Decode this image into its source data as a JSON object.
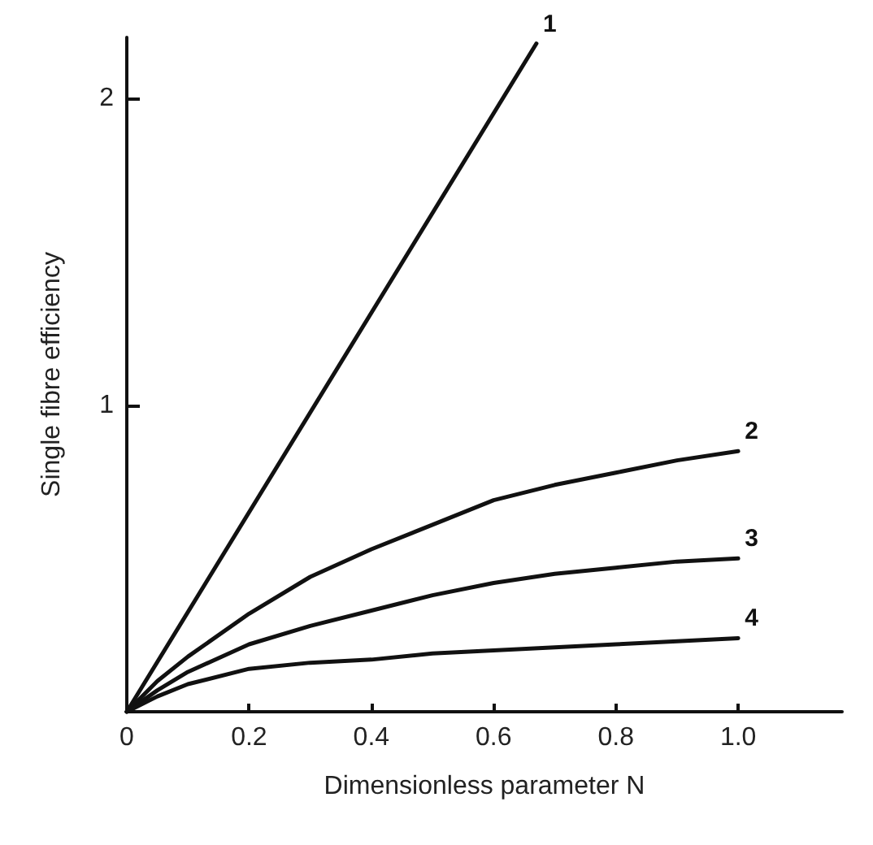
{
  "chart_data": {
    "type": "line",
    "xlabel": "Dimensionless parameter N",
    "ylabel": "Single fibre efficiency",
    "xlim": [
      0,
      1.17
    ],
    "ylim": [
      0,
      2.2
    ],
    "xticks": [
      0,
      0.2,
      0.4,
      0.6,
      0.8,
      {
        "value": 1.0,
        "label": "1.0"
      }
    ],
    "yticks": [
      {
        "value": 0,
        "label": null
      },
      1,
      2
    ],
    "grid": false,
    "legend": false,
    "marker": "none",
    "line_style": "solid",
    "series": [
      {
        "name": "1",
        "color": "#111111",
        "x": [
          0,
          0.67
        ],
        "values": [
          0,
          2.18
        ]
      },
      {
        "name": "2",
        "color": "#111111",
        "x": [
          0,
          0.05,
          0.1,
          0.2,
          0.3,
          0.4,
          0.5,
          0.6,
          0.7,
          0.8,
          0.9,
          1.0
        ],
        "values": [
          0,
          0.1,
          0.18,
          0.32,
          0.44,
          0.53,
          0.61,
          0.69,
          0.74,
          0.78,
          0.82,
          0.85
        ]
      },
      {
        "name": "3",
        "color": "#111111",
        "x": [
          0,
          0.05,
          0.1,
          0.2,
          0.3,
          0.4,
          0.5,
          0.6,
          0.7,
          0.8,
          0.9,
          1.0
        ],
        "values": [
          0,
          0.07,
          0.13,
          0.22,
          0.28,
          0.33,
          0.38,
          0.42,
          0.45,
          0.47,
          0.49,
          0.5
        ]
      },
      {
        "name": "4",
        "color": "#111111",
        "x": [
          0,
          0.05,
          0.1,
          0.2,
          0.3,
          0.4,
          0.5,
          0.6,
          0.7,
          0.8,
          0.9,
          1.0
        ],
        "values": [
          0,
          0.05,
          0.09,
          0.14,
          0.16,
          0.17,
          0.19,
          0.2,
          0.21,
          0.22,
          0.23,
          0.24
        ]
      }
    ]
  }
}
